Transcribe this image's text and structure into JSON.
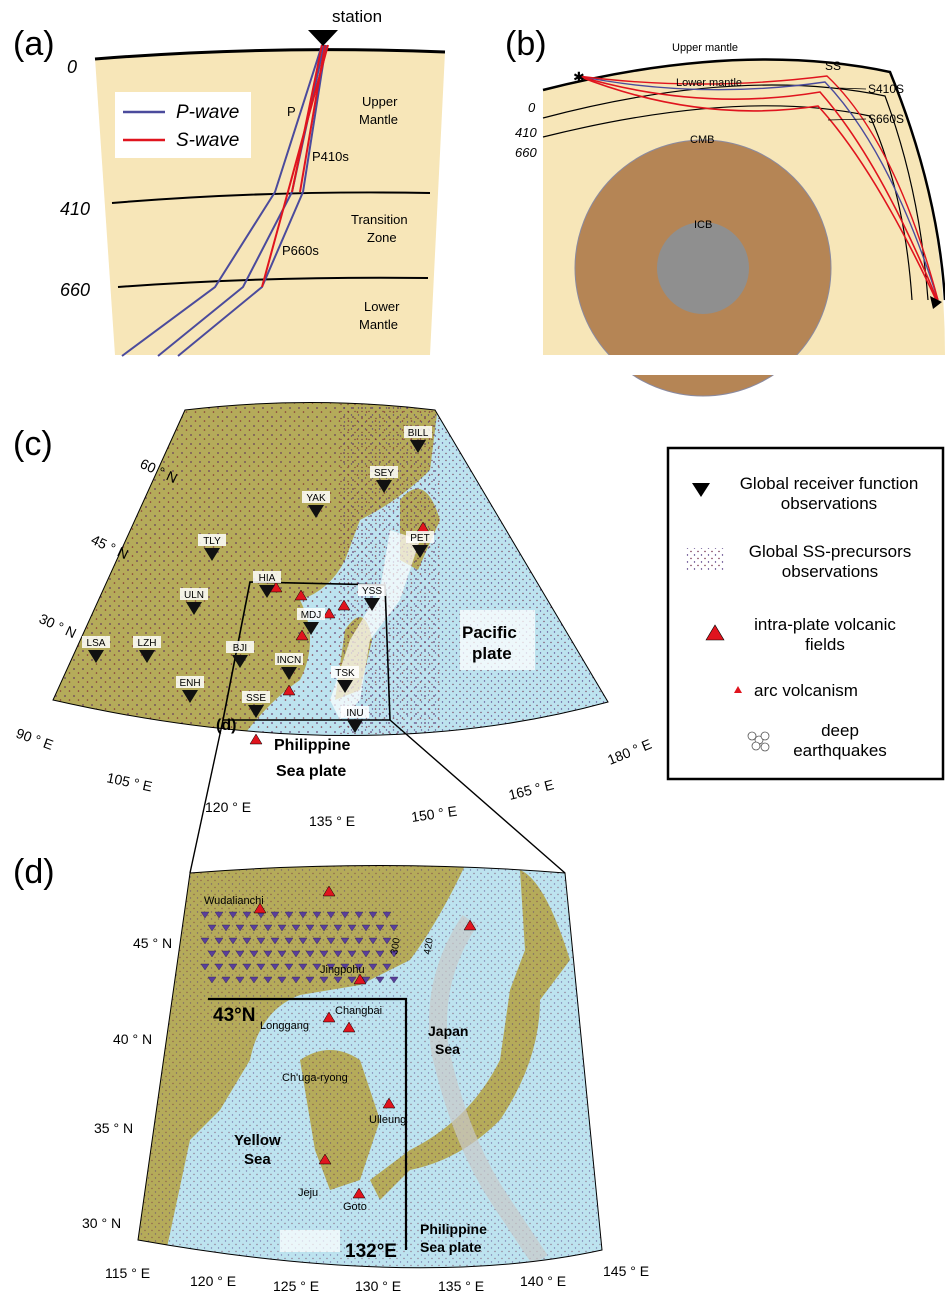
{
  "panel_a": {
    "label": "(a)",
    "station": "station",
    "depths": [
      "0",
      "410",
      "660"
    ],
    "layers": [
      "Upper",
      "Mantle",
      "Transition",
      "Zone",
      "Lower",
      "Mantle"
    ],
    "rays": [
      "P",
      "P410s",
      "P660s"
    ],
    "legend": [
      {
        "name": "P-wave",
        "color": "#4b4b9c"
      },
      {
        "name": "S-wave",
        "color": "#e0141e"
      }
    ]
  },
  "panel_b": {
    "label": "(b)",
    "depths": [
      "0",
      "410",
      "660"
    ],
    "layers": [
      "Upper mantle",
      "Lower mantle",
      "CMB",
      "ICB"
    ],
    "phases": [
      "SS",
      "S410S",
      "S660S"
    ]
  },
  "panel_c": {
    "label": "(c)",
    "lat_labels": [
      "60 ° N",
      "45 ° N",
      "30 ° N"
    ],
    "lon_labels": [
      "90 ° E",
      "105 ° E",
      "120 ° E",
      "135 ° E",
      "150 ° E",
      "165 ° E",
      "180 ° E"
    ],
    "stations": [
      "BILL",
      "SEY",
      "YAK",
      "PET",
      "TLY",
      "HIA",
      "ULN",
      "YSS",
      "MDJ",
      "LSA",
      "LZH",
      "BJI",
      "INCN",
      "TSK",
      "ENH",
      "SSE",
      "INU"
    ],
    "regions": [
      "Pacific",
      "plate",
      "Philippine",
      "Sea plate"
    ],
    "inset_label": "(d)"
  },
  "legend": {
    "items": [
      "Global receiver function observations",
      "Global SS-precursors observations",
      "intra-plate volcanic fields",
      "arc volcanism",
      "deep earthquakes"
    ]
  },
  "panel_d": {
    "label": "(d)",
    "lat_labels": [
      "45 ° N",
      "40 ° N",
      "35 ° N",
      "30 ° N"
    ],
    "lon_labels": [
      "115 ° E",
      "120 ° E",
      "125 ° E",
      "130 ° E",
      "135 ° E",
      "140 ° E",
      "145 ° E"
    ],
    "volcanoes": [
      "Wudalianchi",
      "Jingpohu",
      "Changbai",
      "Longgang",
      "Ch'uga-ryong",
      "Ulleung",
      "Jeju",
      "Goto"
    ],
    "seas": [
      "Japan",
      "Sea",
      "Yellow",
      "Sea",
      "Philippine",
      "Sea plate"
    ],
    "contours": [
      "300",
      "420"
    ],
    "profile_labels": [
      "43°N",
      "132°E"
    ]
  }
}
